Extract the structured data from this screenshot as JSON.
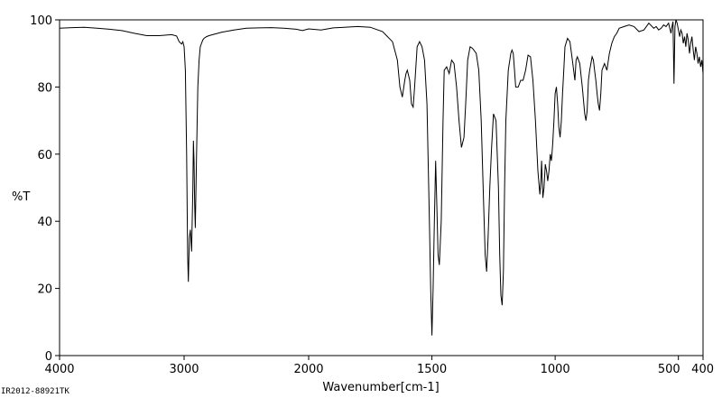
{
  "chart_data": {
    "type": "line",
    "xlabel": "Wavenumber[cm-1]",
    "ylabel": "%T",
    "xlim": [
      4000,
      400
    ],
    "ylim": [
      0,
      100
    ],
    "x_ticks": [
      {
        "value": 4000,
        "label": "4000"
      },
      {
        "value": 3000,
        "label": "3000"
      },
      {
        "value": 2000,
        "label": "2000"
      },
      {
        "value": 1500,
        "label": "1500"
      },
      {
        "value": 1000,
        "label": "1000"
      },
      {
        "value": 500,
        "label": "500"
      },
      {
        "value": 400,
        "label": "400"
      }
    ],
    "y_ticks": [
      0,
      20,
      40,
      60,
      80,
      100
    ],
    "grid": false,
    "series": [
      {
        "x": [
          4000,
          3900,
          3800,
          3700,
          3600,
          3500,
          3400,
          3300,
          3200,
          3100,
          3060,
          3040,
          3020,
          3010,
          3000,
          2990,
          2980,
          2972,
          2966,
          2962,
          2958,
          2950,
          2940,
          2930,
          2925,
          2920,
          2915,
          2910,
          2900,
          2890,
          2880,
          2870,
          2860,
          2850,
          2840,
          2820,
          2800,
          2700,
          2600,
          2500,
          2400,
          2300,
          2200,
          2100,
          2050,
          2000,
          1950,
          1900,
          1800,
          1750,
          1700,
          1680,
          1660,
          1640,
          1630,
          1620,
          1610,
          1605,
          1600,
          1590,
          1583,
          1576,
          1570,
          1560,
          1550,
          1540,
          1530,
          1520,
          1510,
          1505,
          1500,
          1495,
          1490,
          1485,
          1480,
          1475,
          1470,
          1462,
          1455,
          1450,
          1440,
          1430,
          1420,
          1410,
          1400,
          1390,
          1380,
          1370,
          1363,
          1355,
          1345,
          1335,
          1320,
          1310,
          1300,
          1290,
          1284,
          1278,
          1272,
          1265,
          1258,
          1250,
          1240,
          1230,
          1225,
          1220,
          1215,
          1210,
          1205,
          1200,
          1190,
          1180,
          1175,
          1170,
          1165,
          1160,
          1150,
          1140,
          1130,
          1120,
          1110,
          1100,
          1090,
          1080,
          1070,
          1062,
          1058,
          1055,
          1050,
          1045,
          1040,
          1035,
          1030,
          1025,
          1020,
          1015,
          1010,
          1005,
          1000,
          995,
          990,
          985,
          980,
          975,
          970,
          965,
          960,
          950,
          940,
          930,
          925,
          920,
          915,
          910,
          900,
          890,
          880,
          875,
          870,
          865,
          860,
          850,
          845,
          840,
          835,
          830,
          825,
          820,
          815,
          810,
          805,
          800,
          790,
          780,
          770,
          760,
          750,
          740,
          720,
          700,
          680,
          660,
          640,
          620,
          600,
          590,
          580,
          570,
          560,
          550,
          540,
          530,
          526,
          522,
          518,
          514,
          510,
          505,
          500,
          495,
          490,
          485,
          480,
          475,
          470,
          465,
          460,
          455,
          450,
          445,
          440,
          435,
          430,
          425,
          420,
          415,
          410,
          405,
          400
        ],
        "y": [
          97.5,
          97.7,
          97.8,
          97.5,
          97.2,
          96.8,
          96.0,
          95.3,
          95.3,
          95.6,
          95.2,
          93.5,
          92.8,
          93.5,
          92.0,
          85.0,
          60.0,
          30.0,
          22.0,
          28.0,
          35.0,
          37.5,
          31.0,
          50.0,
          64.0,
          58.0,
          45.0,
          38.0,
          60.0,
          80.0,
          88.0,
          92.0,
          93.0,
          94.0,
          94.5,
          95.0,
          95.3,
          96.3,
          97.0,
          97.5,
          97.6,
          97.7,
          97.5,
          97.2,
          96.8,
          97.3,
          97.0,
          97.6,
          98.0,
          97.8,
          96.5,
          95.0,
          93.5,
          88.0,
          80.0,
          77.0,
          82.0,
          84.0,
          85.0,
          82.0,
          75.0,
          74.0,
          80.0,
          92.0,
          93.5,
          92.0,
          88.0,
          75.0,
          40.0,
          20.0,
          6.0,
          20.0,
          40.0,
          58.0,
          45.0,
          30.0,
          27.0,
          40.0,
          70.0,
          85.0,
          86.0,
          84.0,
          88.0,
          87.0,
          80.0,
          70.0,
          62.0,
          65.0,
          75.0,
          88.0,
          92.0,
          91.5,
          90.0,
          85.0,
          70.0,
          45.0,
          30.0,
          25.0,
          35.0,
          50.0,
          62.0,
          72.0,
          70.0,
          50.0,
          30.0,
          18.0,
          15.0,
          25.0,
          50.0,
          70.0,
          85.0,
          90.0,
          91.0,
          90.0,
          85.0,
          80.0,
          80.0,
          82.0,
          82.0,
          85.0,
          89.5,
          89.0,
          82.0,
          70.0,
          55.0,
          48.0,
          52.0,
          58.0,
          47.0,
          50.0,
          57.0,
          55.0,
          52.0,
          55.0,
          60.0,
          58.0,
          63.0,
          70.0,
          78.0,
          80.0,
          75.0,
          68.0,
          65.0,
          70.0,
          78.0,
          85.0,
          92.0,
          94.5,
          93.5,
          88.0,
          85.0,
          82.0,
          88.0,
          89.0,
          87.0,
          80.0,
          72.0,
          70.0,
          73.0,
          82.0,
          85.0,
          89.0,
          88.0,
          85.0,
          82.0,
          78.0,
          75.0,
          73.0,
          78.0,
          85.0,
          86.0,
          87.0,
          85.0,
          90.0,
          93.0,
          95.0,
          96.0,
          97.5,
          98.0,
          98.5,
          98.0,
          96.5,
          97.0,
          99.0,
          97.5,
          98.0,
          97.0,
          97.5,
          98.5,
          98.0,
          99.0,
          96.0,
          98.0,
          99.5,
          81.0,
          98.0,
          100.0,
          99.0,
          97.0,
          95.0,
          97.0,
          96.0,
          93.0,
          95.0,
          92.0,
          96.0,
          94.0,
          90.0,
          93.0,
          95.0,
          91.0,
          88.0,
          92.0,
          90.0,
          87.0,
          89.0,
          86.0,
          88.0,
          84.0
        ]
      }
    ]
  },
  "footer": {
    "code": "IR2012-88921TK"
  }
}
